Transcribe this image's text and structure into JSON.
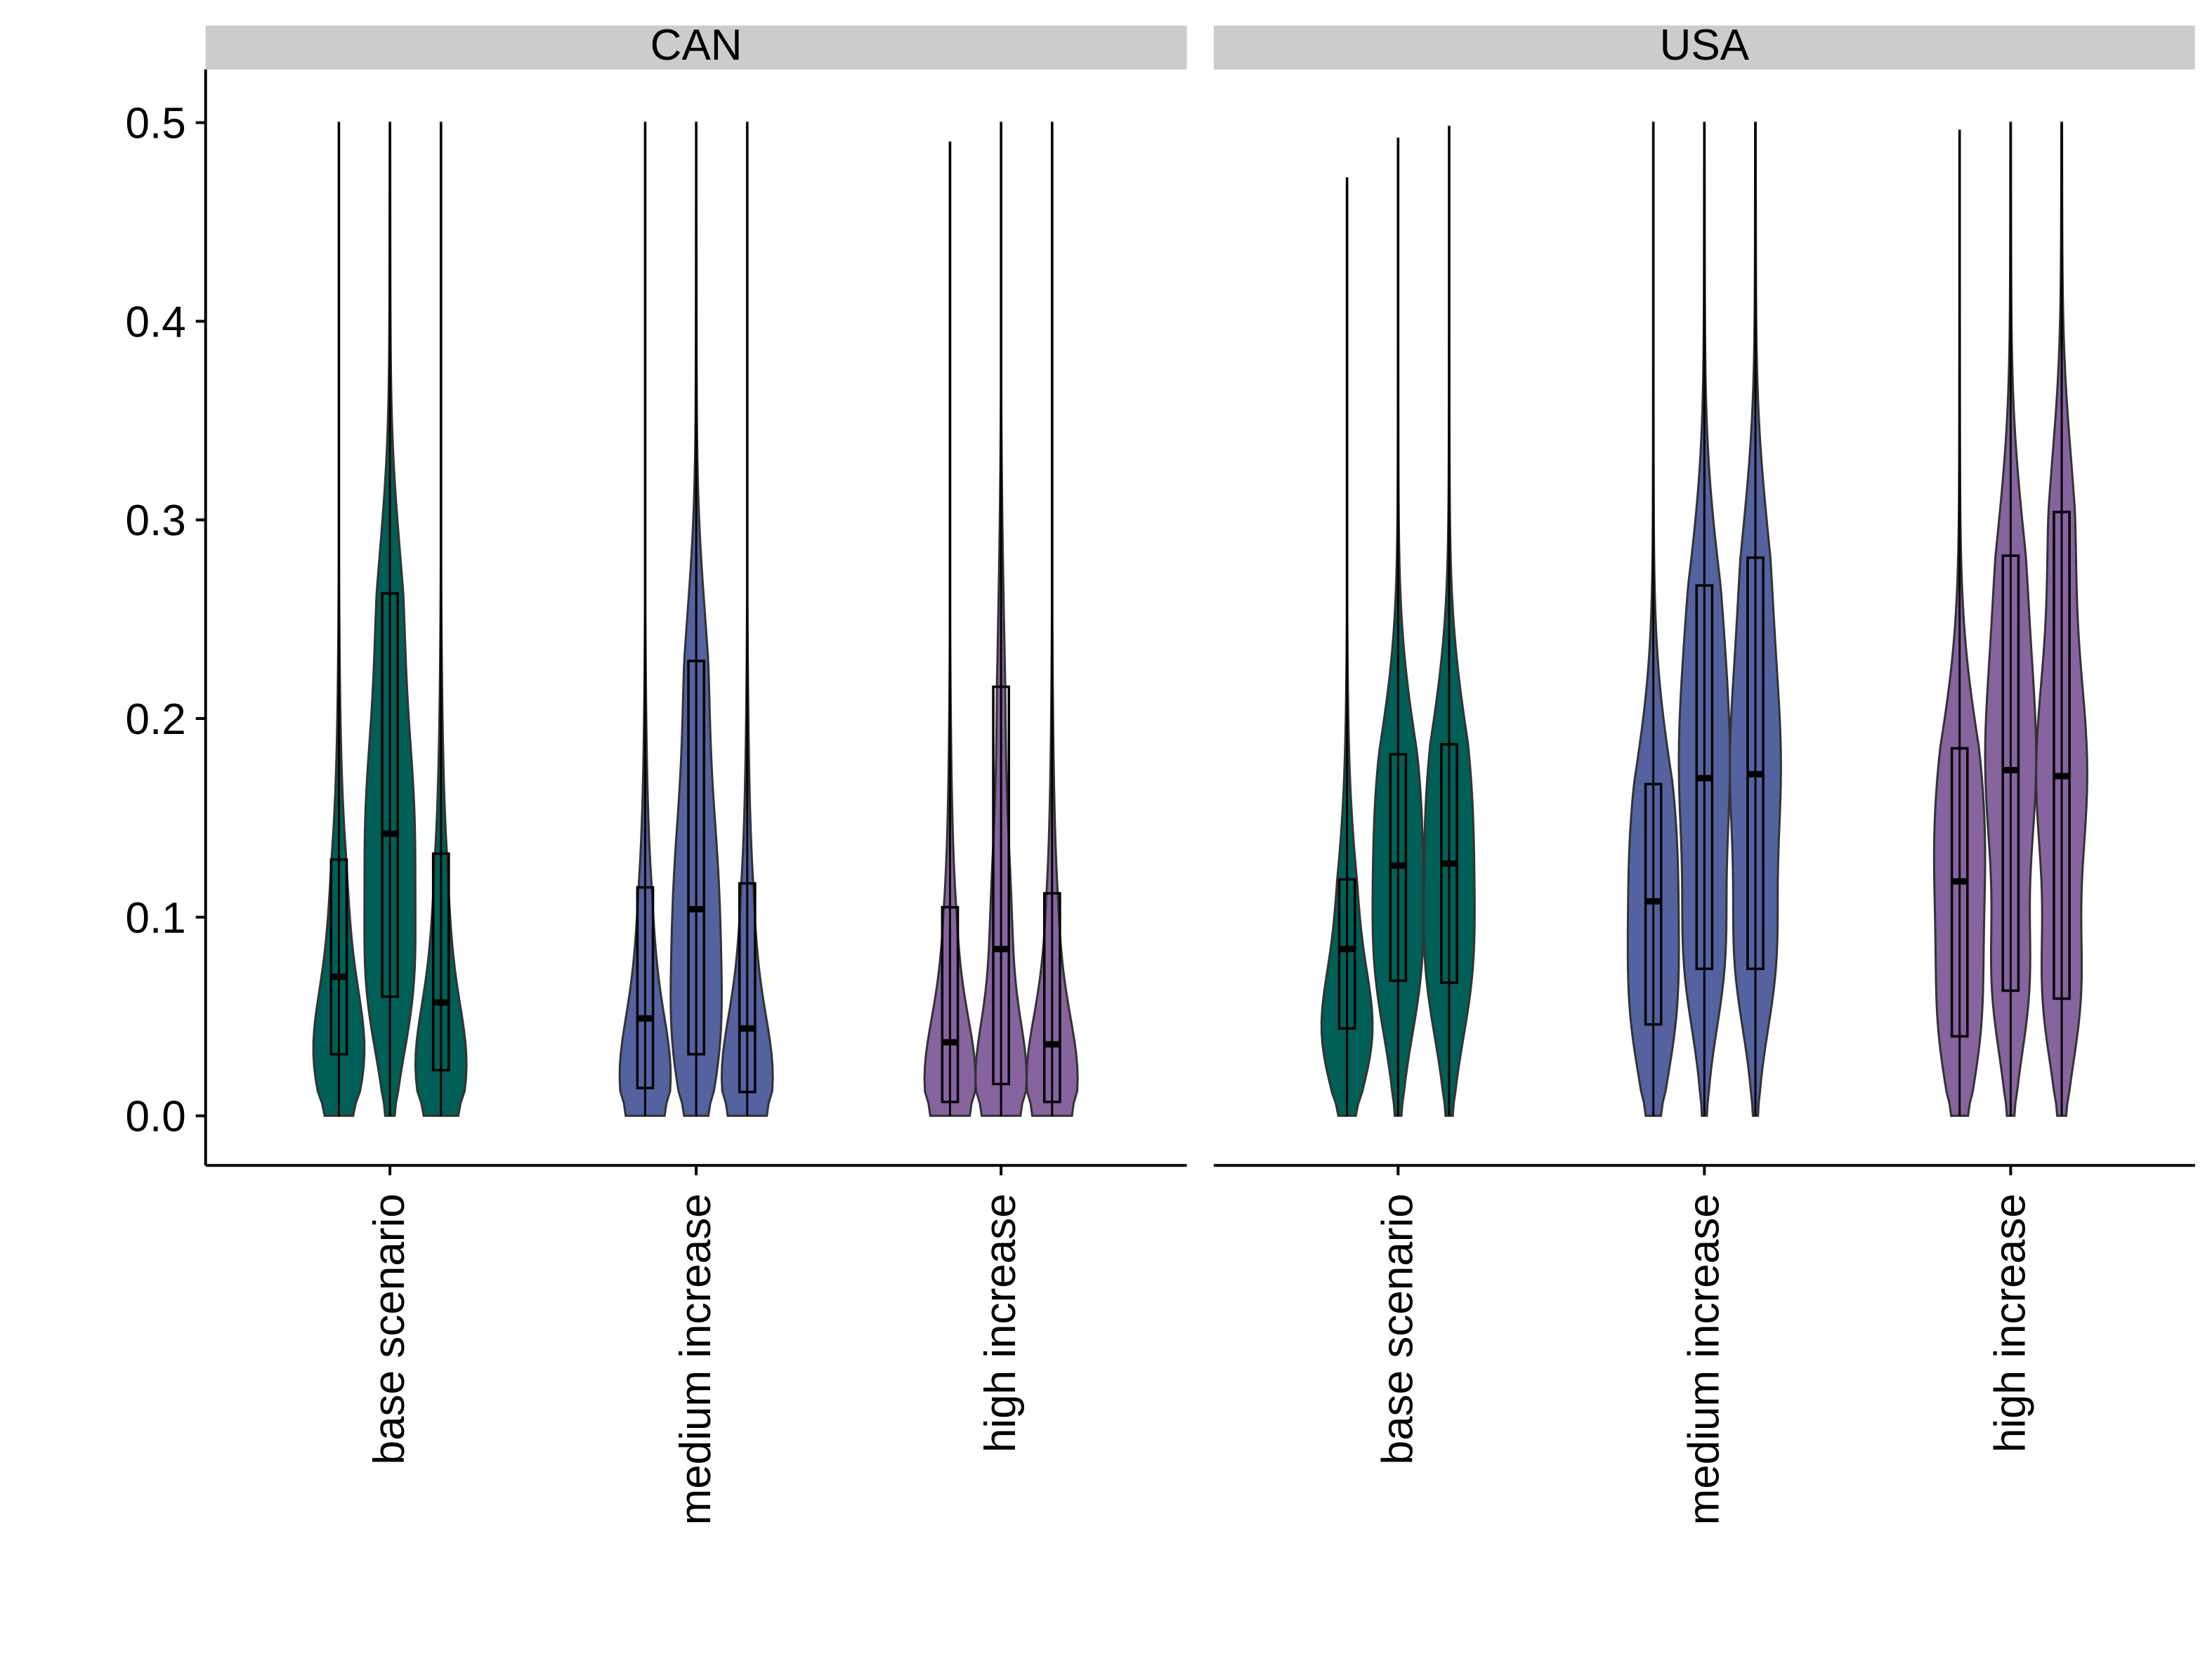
{
  "chart_data": {
    "type": "violin",
    "ylim": [
      0,
      0.5
    ],
    "y_ticks": [
      "0.0",
      "0.1",
      "0.2",
      "0.3",
      "0.4",
      "0.5"
    ],
    "y_tick_values": [
      0,
      0.1,
      0.2,
      0.3,
      0.4,
      0.5
    ],
    "categories": [
      "base scenario",
      "medium increase",
      "high increase"
    ],
    "colors": {
      "base scenario": "#005f56",
      "medium increase": "#5462a0",
      "high increase": "#8763a0"
    },
    "grid": false,
    "panels": [
      {
        "facet": "CAN",
        "groups": [
          {
            "category": "base scenario",
            "violins": [
              {
                "min": 0,
                "q1": 0.031,
                "median": 0.07,
                "q3": 0.129,
                "max": 0.5
              },
              {
                "min": 0,
                "q1": 0.06,
                "median": 0.142,
                "q3": 0.263,
                "max": 0.5
              },
              {
                "min": 0,
                "q1": 0.023,
                "median": 0.057,
                "q3": 0.132,
                "max": 0.5
              }
            ]
          },
          {
            "category": "medium increase",
            "violins": [
              {
                "min": 0,
                "q1": 0.014,
                "median": 0.049,
                "q3": 0.115,
                "max": 0.5
              },
              {
                "min": 0,
                "q1": 0.031,
                "median": 0.104,
                "q3": 0.229,
                "max": 0.5
              },
              {
                "min": 0,
                "q1": 0.012,
                "median": 0.044,
                "q3": 0.117,
                "max": 0.5
              }
            ]
          },
          {
            "category": "high increase",
            "violins": [
              {
                "min": 0,
                "q1": 0.007,
                "median": 0.037,
                "q3": 0.105,
                "max": 0.49
              },
              {
                "min": 0,
                "q1": 0.016,
                "median": 0.084,
                "q3": 0.216,
                "max": 0.5
              },
              {
                "min": 0,
                "q1": 0.007,
                "median": 0.036,
                "q3": 0.112,
                "max": 0.5
              }
            ]
          }
        ]
      },
      {
        "facet": "USA",
        "groups": [
          {
            "category": "base scenario",
            "violins": [
              {
                "min": 0,
                "q1": 0.044,
                "median": 0.084,
                "q3": 0.119,
                "max": 0.472
              },
              {
                "min": 0,
                "q1": 0.068,
                "median": 0.126,
                "q3": 0.182,
                "max": 0.492
              },
              {
                "min": 0,
                "q1": 0.067,
                "median": 0.127,
                "q3": 0.187,
                "max": 0.498
              }
            ]
          },
          {
            "category": "medium increase",
            "violins": [
              {
                "min": 0,
                "q1": 0.046,
                "median": 0.108,
                "q3": 0.167,
                "max": 0.5
              },
              {
                "min": 0,
                "q1": 0.074,
                "median": 0.17,
                "q3": 0.267,
                "max": 0.5
              },
              {
                "min": 0,
                "q1": 0.074,
                "median": 0.172,
                "q3": 0.281,
                "max": 0.5
              }
            ]
          },
          {
            "category": "high increase",
            "violins": [
              {
                "min": 0,
                "q1": 0.04,
                "median": 0.118,
                "q3": 0.185,
                "max": 0.496
              },
              {
                "min": 0,
                "q1": 0.063,
                "median": 0.174,
                "q3": 0.282,
                "max": 0.5
              },
              {
                "min": 0,
                "q1": 0.059,
                "median": 0.171,
                "q3": 0.304,
                "max": 0.5
              }
            ]
          }
        ]
      }
    ]
  }
}
